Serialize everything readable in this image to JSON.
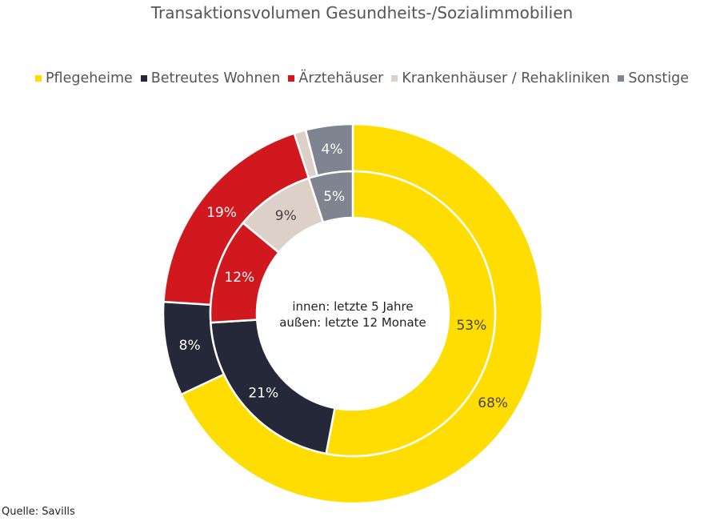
{
  "chart_data": {
    "type": "pie",
    "subtype": "nested-donut",
    "title": "Transaktionsvolumen Gesundheits-/Sozialimmobilien",
    "categories": [
      "Pflegeheime",
      "Betreutes Wohnen",
      "Ärztehäuser",
      "Krankenhäuser / Rehakliniken",
      "Sonstige"
    ],
    "colors": [
      "#FFDD00",
      "#252839",
      "#D0181E",
      "#DDD0C8",
      "#7F8590"
    ],
    "label_colors": [
      "#444444",
      "#ffffff",
      "#ffffff",
      "#444444",
      "#ffffff"
    ],
    "series": [
      {
        "ring": "outer",
        "values": [
          68,
          8,
          19,
          1,
          4
        ],
        "labels": [
          "68%",
          "8%",
          "19%",
          "",
          "4%"
        ]
      },
      {
        "ring": "inner",
        "values": [
          53,
          21,
          12,
          9,
          5
        ],
        "labels": [
          "53%",
          "21%",
          "12%",
          "9%",
          "5%"
        ]
      }
    ],
    "center_label": [
      "innen: letzte 5 Jahre",
      "außen: letzte 12 Monate"
    ],
    "legend_position": "top",
    "unit": "%"
  },
  "source": "Quelle: Savills"
}
